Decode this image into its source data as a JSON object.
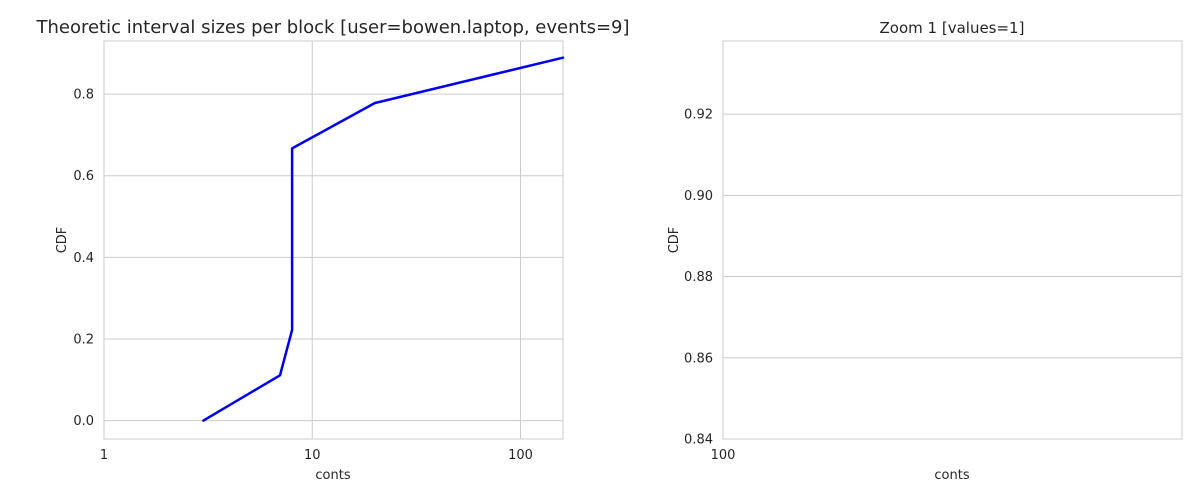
{
  "chart_data": [
    {
      "type": "line",
      "title": "Theoretic interval sizes per block [user=bowen.laptop, events=9]",
      "xlabel": "conts",
      "ylabel": "CDF",
      "xscale": "log",
      "xlim": [
        1,
        160
      ],
      "ylim": [
        -0.045,
        0.93
      ],
      "xticks": [
        1,
        10,
        100
      ],
      "xtick_labels": [
        "1",
        "10",
        "100"
      ],
      "yticks": [
        0.0,
        0.2,
        0.4,
        0.6,
        0.8
      ],
      "ytick_labels": [
        "0.0",
        "0.2",
        "0.4",
        "0.6",
        "0.8"
      ],
      "grid": true,
      "series": [
        {
          "color": "#0000ee",
          "x": [
            3,
            7,
            8,
            8,
            20,
            160
          ],
          "y": [
            0.0,
            0.111,
            0.222,
            0.667,
            0.778,
            0.889
          ]
        }
      ]
    },
    {
      "type": "line",
      "title": "Zoom 1 [values=1]",
      "xlabel": "conts",
      "ylabel": "CDF",
      "xscale": "log",
      "xlim": [
        100,
        1000
      ],
      "ylim": [
        0.84,
        0.938
      ],
      "xticks": [
        100
      ],
      "xtick_labels": [
        "100"
      ],
      "yticks": [
        0.84,
        0.86,
        0.88,
        0.9,
        0.92
      ],
      "ytick_labels": [
        "0.84",
        "0.86",
        "0.88",
        "0.90",
        "0.92"
      ],
      "grid": true,
      "series": []
    }
  ]
}
